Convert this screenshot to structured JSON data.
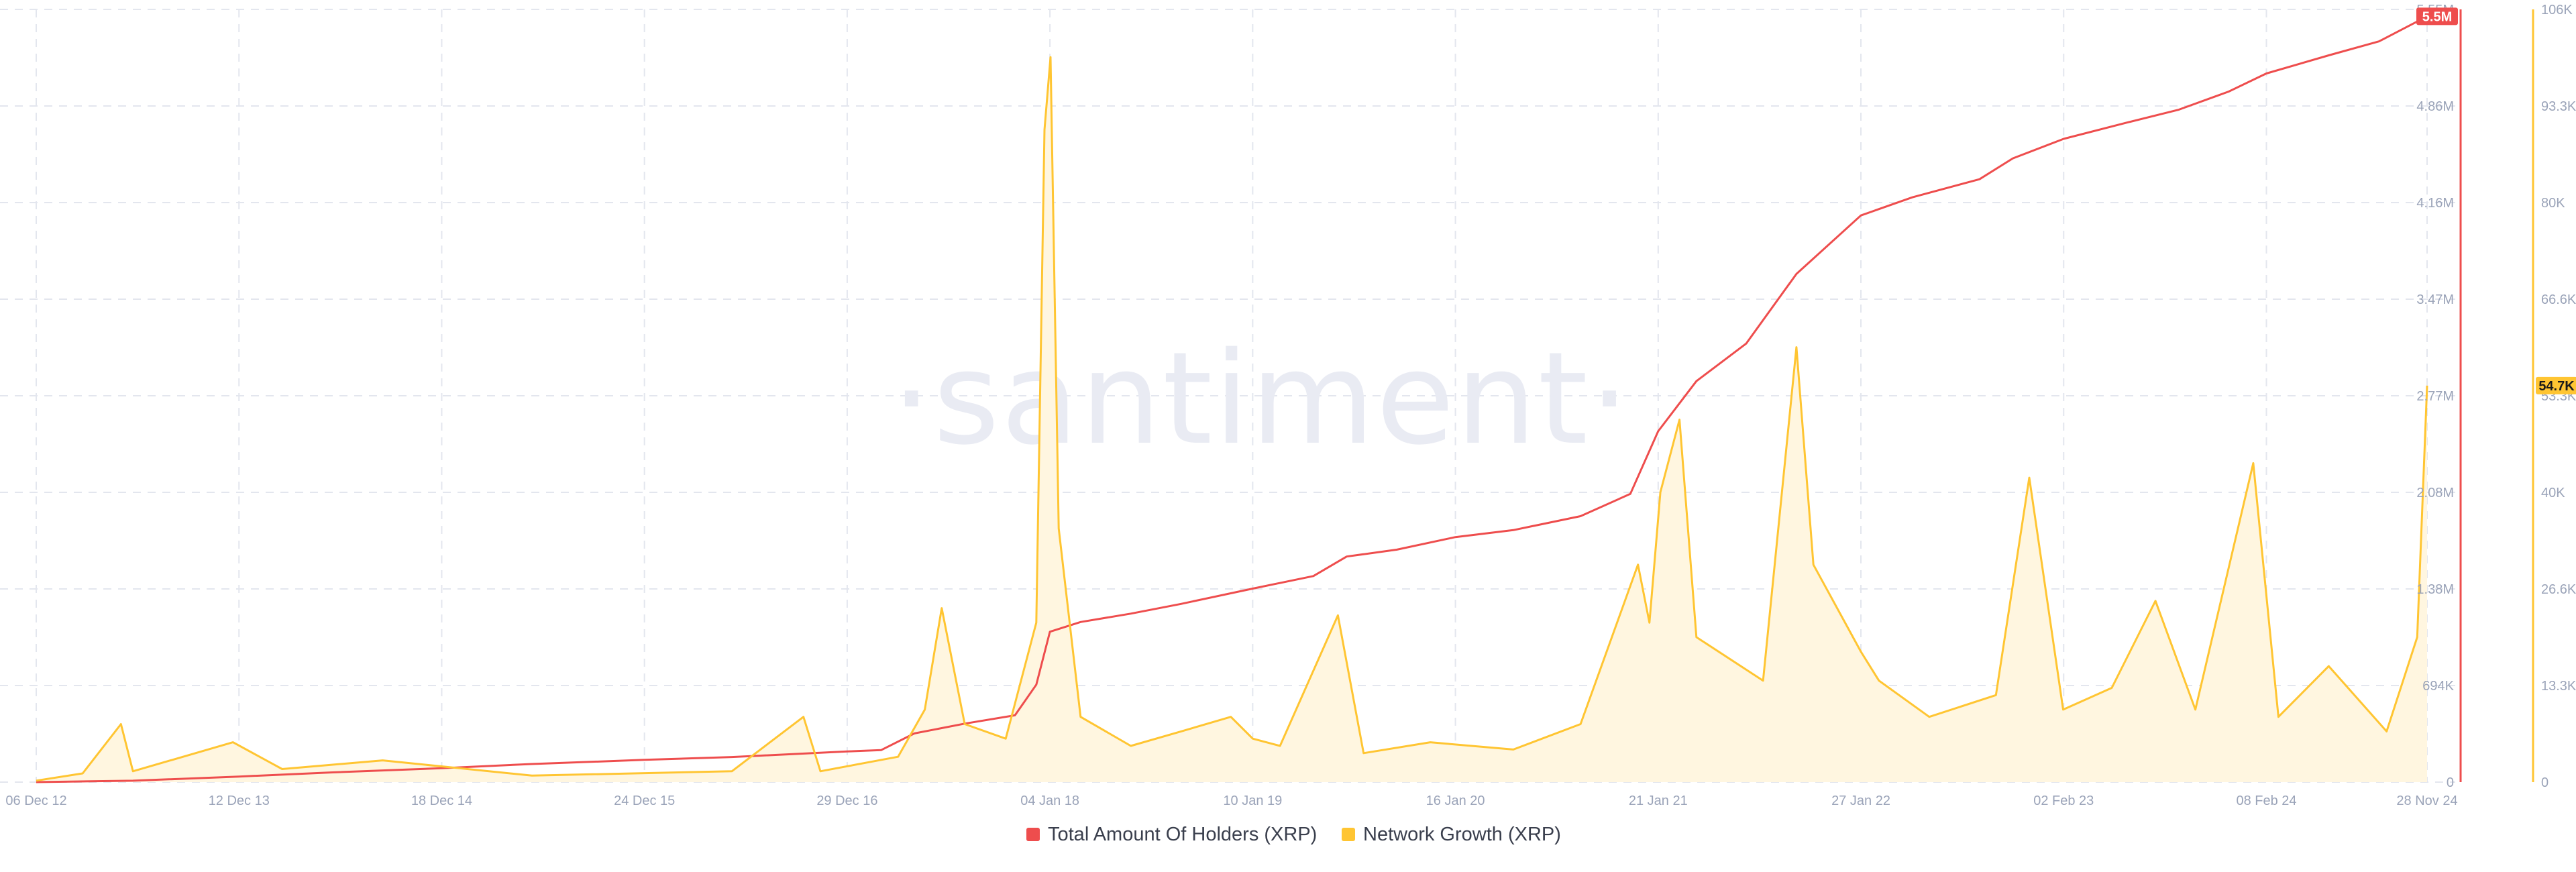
{
  "watermark": "·santiment·",
  "colors": {
    "holders": "#ee4d4d",
    "growth": "#ffc532",
    "growth_fill": "#fff6e0",
    "grid": "#e3e6ee",
    "tick": "#9aa3b8"
  },
  "chart_data": {
    "type": "line",
    "x_ticks": [
      "06 Dec 12",
      "12 Dec 13",
      "18 Dec 14",
      "24 Dec 15",
      "29 Dec 16",
      "04 Jan 18",
      "10 Jan 19",
      "16 Jan 20",
      "21 Jan 21",
      "27 Jan 22",
      "02 Feb 23",
      "08 Feb 24",
      "28 Nov 24"
    ],
    "x_range": [
      "2012-12-06",
      "2024-11-28"
    ],
    "left_axis": {
      "ticks": [
        "0",
        "694K",
        "1.38M",
        "2.08M",
        "2.77M",
        "3.47M",
        "4.16M",
        "4.86M",
        "5.55M"
      ],
      "ylim": [
        0,
        5550000
      ]
    },
    "right_axis": {
      "ticks": [
        "0",
        "13.3K",
        "26.6K",
        "40K",
        "53.3K",
        "66.6K",
        "80K",
        "93.3K",
        "106K"
      ],
      "ylim": [
        0,
        106600
      ]
    },
    "grid": true,
    "legend_position": "bottom-center",
    "series": [
      {
        "name": "Total Amount Of Holders (XRP)",
        "axis": "left",
        "style": "line",
        "last_value_label": "5.5M",
        "points": [
          [
            "2012-12-06",
            0
          ],
          [
            "2013-06-01",
            10000
          ],
          [
            "2013-12-12",
            40000
          ],
          [
            "2014-06-01",
            70000
          ],
          [
            "2014-12-18",
            100000
          ],
          [
            "2015-06-01",
            130000
          ],
          [
            "2015-12-24",
            160000
          ],
          [
            "2016-06-01",
            180000
          ],
          [
            "2016-12-29",
            220000
          ],
          [
            "2017-03-01",
            230000
          ],
          [
            "2017-05-01",
            350000
          ],
          [
            "2017-08-01",
            420000
          ],
          [
            "2017-11-01",
            480000
          ],
          [
            "2017-12-10",
            700000
          ],
          [
            "2018-01-04",
            1080000
          ],
          [
            "2018-03-01",
            1150000
          ],
          [
            "2018-06-01",
            1210000
          ],
          [
            "2018-09-01",
            1280000
          ],
          [
            "2019-01-10",
            1390000
          ],
          [
            "2019-05-01",
            1480000
          ],
          [
            "2019-07-01",
            1620000
          ],
          [
            "2019-10-01",
            1670000
          ],
          [
            "2020-01-16",
            1760000
          ],
          [
            "2020-05-01",
            1810000
          ],
          [
            "2020-09-01",
            1910000
          ],
          [
            "2020-12-01",
            2070000
          ],
          [
            "2021-01-21",
            2520000
          ],
          [
            "2021-04-01",
            2880000
          ],
          [
            "2021-07-01",
            3150000
          ],
          [
            "2021-10-01",
            3650000
          ],
          [
            "2022-01-27",
            4070000
          ],
          [
            "2022-05-01",
            4200000
          ],
          [
            "2022-09-01",
            4330000
          ],
          [
            "2022-11-01",
            4480000
          ],
          [
            "2023-02-02",
            4620000
          ],
          [
            "2023-06-01",
            4740000
          ],
          [
            "2023-09-01",
            4830000
          ],
          [
            "2023-12-01",
            4960000
          ],
          [
            "2024-02-08",
            5090000
          ],
          [
            "2024-06-01",
            5220000
          ],
          [
            "2024-09-01",
            5320000
          ],
          [
            "2024-11-28",
            5500000
          ]
        ]
      },
      {
        "name": "Network Growth (XRP)",
        "axis": "right",
        "style": "area",
        "last_value_label": "54.7K",
        "points": [
          [
            "2012-12-06",
            200
          ],
          [
            "2013-03-01",
            1200
          ],
          [
            "2013-05-10",
            8000
          ],
          [
            "2013-06-01",
            1500
          ],
          [
            "2013-12-01",
            5500
          ],
          [
            "2014-03-01",
            1800
          ],
          [
            "2014-09-01",
            3000
          ],
          [
            "2015-06-01",
            900
          ],
          [
            "2016-06-01",
            1500
          ],
          [
            "2016-10-10",
            9000
          ],
          [
            "2016-11-10",
            1500
          ],
          [
            "2017-04-01",
            3500
          ],
          [
            "2017-05-20",
            10000
          ],
          [
            "2017-06-20",
            24000
          ],
          [
            "2017-08-01",
            8000
          ],
          [
            "2017-10-15",
            6000
          ],
          [
            "2017-12-10",
            22000
          ],
          [
            "2017-12-25",
            90000
          ],
          [
            "2018-01-05",
            100000
          ],
          [
            "2018-01-20",
            35000
          ],
          [
            "2018-03-01",
            9000
          ],
          [
            "2018-06-01",
            5000
          ],
          [
            "2018-09-01",
            7000
          ],
          [
            "2018-12-01",
            9000
          ],
          [
            "2019-01-10",
            6000
          ],
          [
            "2019-03-01",
            5000
          ],
          [
            "2019-06-15",
            23000
          ],
          [
            "2019-08-01",
            4000
          ],
          [
            "2019-12-01",
            5500
          ],
          [
            "2020-05-01",
            4500
          ],
          [
            "2020-09-01",
            8000
          ],
          [
            "2020-12-15",
            30000
          ],
          [
            "2021-01-05",
            22000
          ],
          [
            "2021-01-25",
            40000
          ],
          [
            "2021-03-01",
            50000
          ],
          [
            "2021-04-01",
            20000
          ],
          [
            "2021-08-01",
            14000
          ],
          [
            "2021-10-01",
            60000
          ],
          [
            "2021-11-01",
            30000
          ],
          [
            "2022-01-27",
            18000
          ],
          [
            "2022-03-01",
            14000
          ],
          [
            "2022-06-01",
            9000
          ],
          [
            "2022-10-01",
            12000
          ],
          [
            "2022-12-01",
            42000
          ],
          [
            "2023-02-01",
            10000
          ],
          [
            "2023-05-01",
            13000
          ],
          [
            "2023-07-20",
            25000
          ],
          [
            "2023-10-01",
            10000
          ],
          [
            "2024-01-15",
            44000
          ],
          [
            "2024-03-01",
            9000
          ],
          [
            "2024-06-01",
            16000
          ],
          [
            "2024-09-15",
            7000
          ],
          [
            "2024-11-10",
            20000
          ],
          [
            "2024-11-28",
            54700
          ]
        ]
      }
    ]
  }
}
